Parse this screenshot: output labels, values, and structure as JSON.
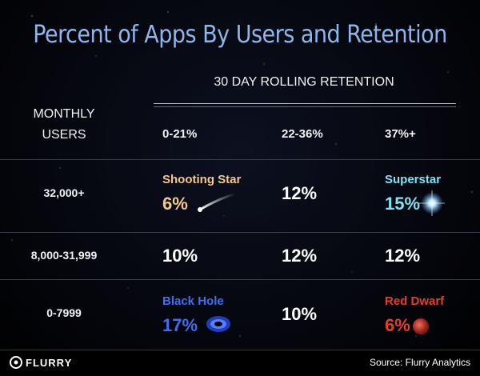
{
  "title": "Percent of Apps By Users and Retention",
  "table": {
    "column_group": "30 DAY ROLLING RETENTION",
    "row_header": "MONTHLY USERS",
    "columns": [
      "0-21%",
      "22-36%",
      "37%+"
    ],
    "rows": [
      {
        "label": "32,000+",
        "cells": [
          {
            "name": "Shooting Star",
            "value": "6%"
          },
          {
            "value": "12%"
          },
          {
            "name": "Superstar",
            "value": "15%"
          }
        ]
      },
      {
        "label": "8,000-31,999",
        "cells": [
          {
            "value": "10%"
          },
          {
            "value": "12%"
          },
          {
            "value": "12%"
          }
        ]
      },
      {
        "label": "0-7999",
        "cells": [
          {
            "name": "Black Hole",
            "value": "17%"
          },
          {
            "value": "10%"
          },
          {
            "name": "Red Dwarf",
            "value": "6%"
          }
        ]
      }
    ]
  },
  "footer": {
    "brand": "FLURRY",
    "source": "Source: Flurry Analytics"
  }
}
